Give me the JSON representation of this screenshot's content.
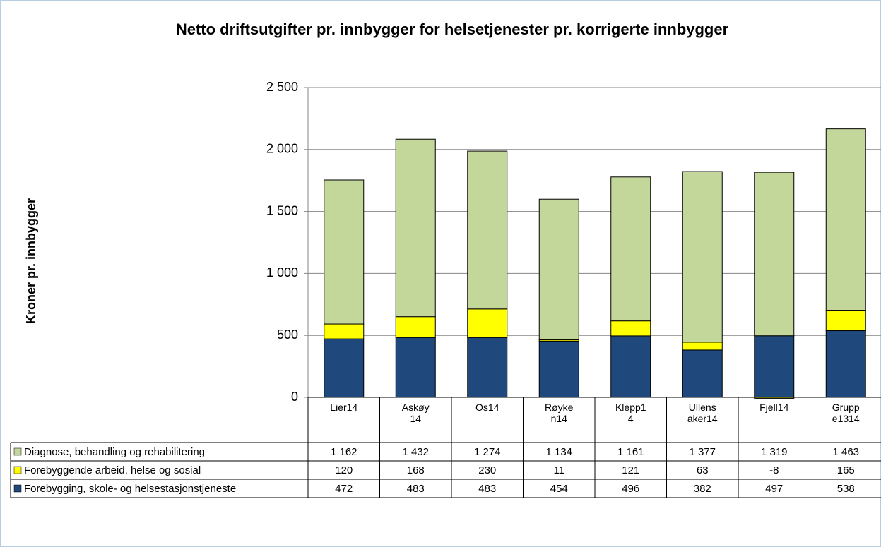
{
  "chart_data": {
    "type": "stacked_bar",
    "title": "Netto driftsutgifter pr. innbygger for helsetjenester pr. korrigerte innbygger",
    "y_label": "Kroner pr. innbygger",
    "categories": [
      "Lier14",
      "Askøy14",
      "Os14",
      "Røyken14",
      "Klepp14",
      "Ullensaker14",
      "Fjell14",
      "Gruppe1314"
    ],
    "series": [
      {
        "name": "Diagnose, behandling og rehabilitering",
        "color": "#c4d79b",
        "values": [
          1162,
          1432,
          1274,
          1134,
          1161,
          1377,
          1319,
          1463
        ],
        "value_labels": [
          "1 162",
          "1 432",
          "1 274",
          "1 134",
          "1 161",
          "1 377",
          "1 319",
          "1 463"
        ]
      },
      {
        "name": "Forebyggende arbeid, helse og sosial",
        "color": "#ffff00",
        "values": [
          120,
          168,
          230,
          11,
          121,
          63,
          -8,
          165
        ]
      },
      {
        "name": "Forebygging, skole- og helsestasjonstjeneste",
        "color": "#1f497d",
        "values": [
          472,
          483,
          483,
          454,
          496,
          382,
          497,
          538
        ]
      }
    ],
    "ylim": [
      0,
      2500
    ],
    "yticks": [
      0,
      500,
      {
        "value": 1000,
        "label": "1 000"
      },
      {
        "value": 1500,
        "label": "1 500"
      },
      {
        "value": 2000,
        "label": "2 000"
      },
      {
        "value": 2500,
        "label": "2 500"
      }
    ],
    "grid": true
  }
}
